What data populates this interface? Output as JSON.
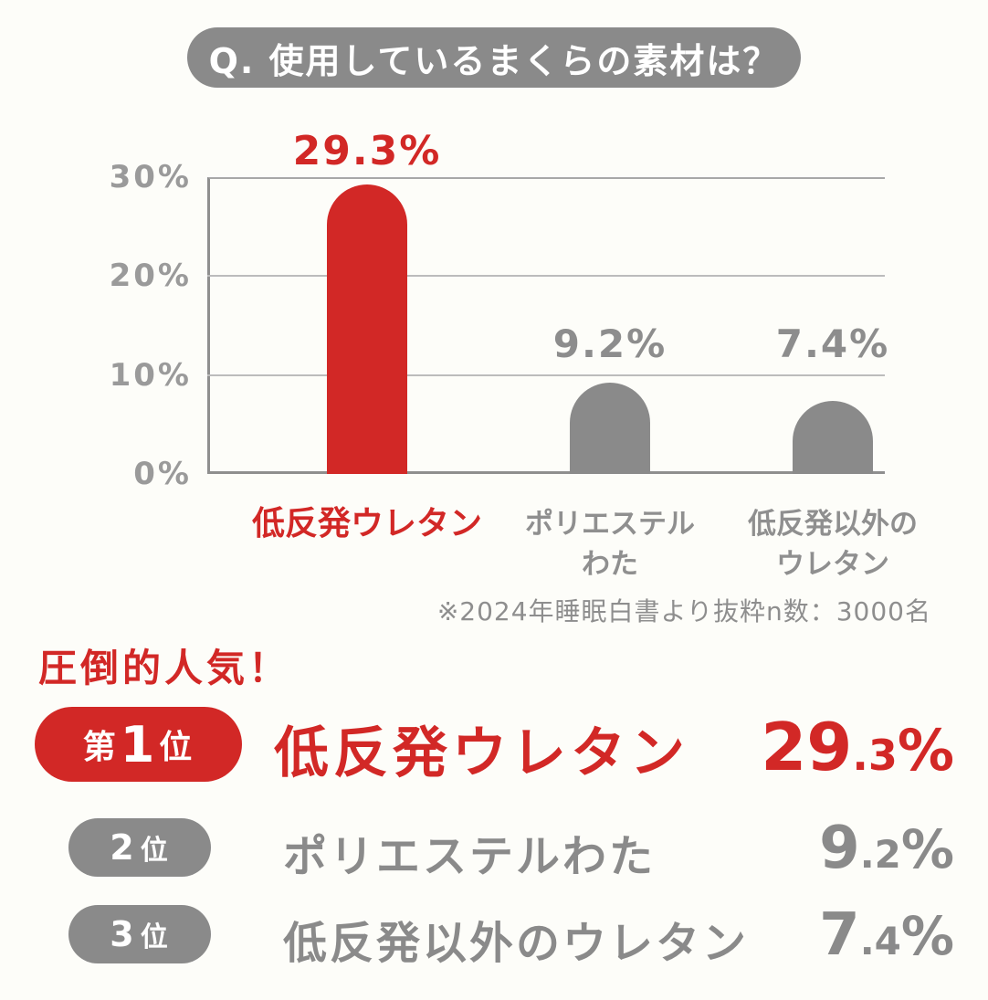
{
  "title": "Q. 使用しているまくらの素材は？",
  "colors": {
    "red": "#d22826",
    "gray": "#8a8a8a",
    "axis_label_gray": "#9a9a9a",
    "grid_gray": "#bcbcbc",
    "background": "#fdfdf9"
  },
  "chart_data": {
    "type": "bar",
    "title": "Q. 使用しているまくらの素材は？",
    "categories": [
      "低反発ウレタン",
      "ポリエステルわた",
      "低反発以外のウレタン"
    ],
    "category_lines": [
      [
        "低反発ウレタン"
      ],
      [
        "ポリエステル",
        "わた"
      ],
      [
        "低反発以外の",
        "ウレタン"
      ]
    ],
    "values": [
      29.3,
      9.2,
      7.4
    ],
    "value_labels": [
      "29.3%",
      "9.2%",
      "7.4%"
    ],
    "bar_colors": [
      "#d22826",
      "#8a8a8a",
      "#8a8a8a"
    ],
    "highlight_index": 0,
    "xlabel": "",
    "ylabel": "",
    "ylim": [
      0,
      30
    ],
    "yticks": [
      "30%",
      "20%",
      "10%",
      "0%"
    ],
    "grid": true,
    "legend": false,
    "source_note": "※2024年睡眠白書より抜粋n数：3000名"
  },
  "ranking": {
    "headline": "圧倒的人気！",
    "rows": [
      {
        "badge_prefix": "第",
        "badge_num": "1",
        "badge_suffix": "位",
        "label": "低反発ウレタン",
        "value_int": "29",
        "value_dec": ".3",
        "value_unit": "%",
        "highlight": true
      },
      {
        "badge_prefix": "",
        "badge_num": "2",
        "badge_suffix": "位",
        "label": "ポリエステルわた",
        "value_int": "9",
        "value_dec": ".2",
        "value_unit": "%",
        "highlight": false
      },
      {
        "badge_prefix": "",
        "badge_num": "3",
        "badge_suffix": "位",
        "label": "低反発以外のウレタン",
        "value_int": "7",
        "value_dec": ".4",
        "value_unit": "%",
        "highlight": false
      }
    ]
  }
}
